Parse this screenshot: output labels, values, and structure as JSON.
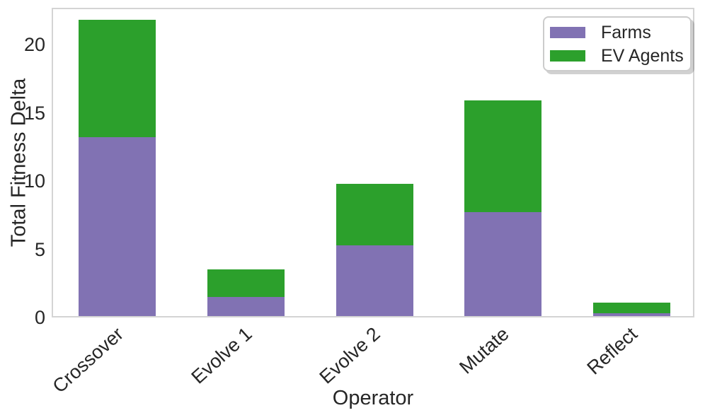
{
  "figure": {
    "xlabel": "Operator",
    "ylabel": "Total Fitness Delta"
  },
  "legend": {
    "position": "upper right",
    "items": [
      {
        "label": "Farms",
        "color": "#8172b3"
      },
      {
        "label": "EV Agents",
        "color": "#2ca02c"
      }
    ]
  },
  "chart_data": {
    "type": "bar",
    "stacked": true,
    "title": "",
    "xlabel": "Operator",
    "ylabel": "Total Fitness Delta",
    "categories": [
      "Crossover",
      "Evolve 1",
      "Evolve 2",
      "Mutate",
      "Reflect"
    ],
    "series": [
      {
        "name": "Farms",
        "color": "#8172b3",
        "values": [
          13.1,
          1.4,
          5.2,
          7.6,
          0.2
        ]
      },
      {
        "name": "EV Agents",
        "color": "#2ca02c",
        "values": [
          8.6,
          2.0,
          4.5,
          8.2,
          0.8
        ]
      }
    ],
    "totals": [
      21.7,
      3.4,
      9.7,
      15.8,
      1.0
    ],
    "yticks": [
      0,
      5,
      10,
      15,
      20
    ],
    "ylim": [
      0,
      22.7
    ],
    "grid": false,
    "x_tick_rotation": 42,
    "legend_position": "upper right",
    "spine_color": "#d4d4d4",
    "text_color": "#262626"
  }
}
